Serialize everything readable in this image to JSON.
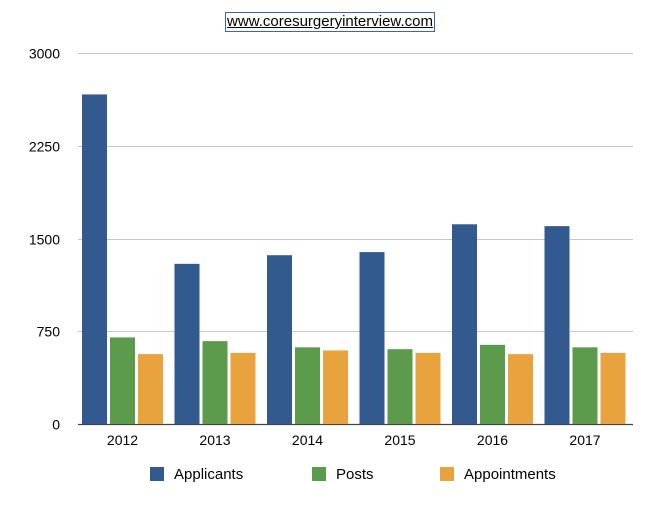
{
  "chart_data": {
    "type": "bar",
    "title": "www.coresurgeryinterview.com",
    "xlabel": "",
    "ylabel": "",
    "categories": [
      "2012",
      "2013",
      "2014",
      "2015",
      "2016",
      "2017"
    ],
    "series": [
      {
        "name": "Applicants",
        "color": "#335a8f",
        "values": [
          2665,
          1295,
          1365,
          1390,
          1615,
          1600
        ]
      },
      {
        "name": "Posts",
        "color": "#5c9a4c",
        "values": [
          700,
          670,
          620,
          605,
          640,
          620
        ]
      },
      {
        "name": "Appointments",
        "color": "#e8a33f",
        "values": [
          565,
          575,
          595,
          575,
          565,
          575
        ]
      }
    ],
    "ylim": [
      0,
      3000
    ],
    "yticks": [
      0,
      750,
      1500,
      2250,
      3000
    ],
    "grid": true,
    "legend_position": "bottom"
  }
}
